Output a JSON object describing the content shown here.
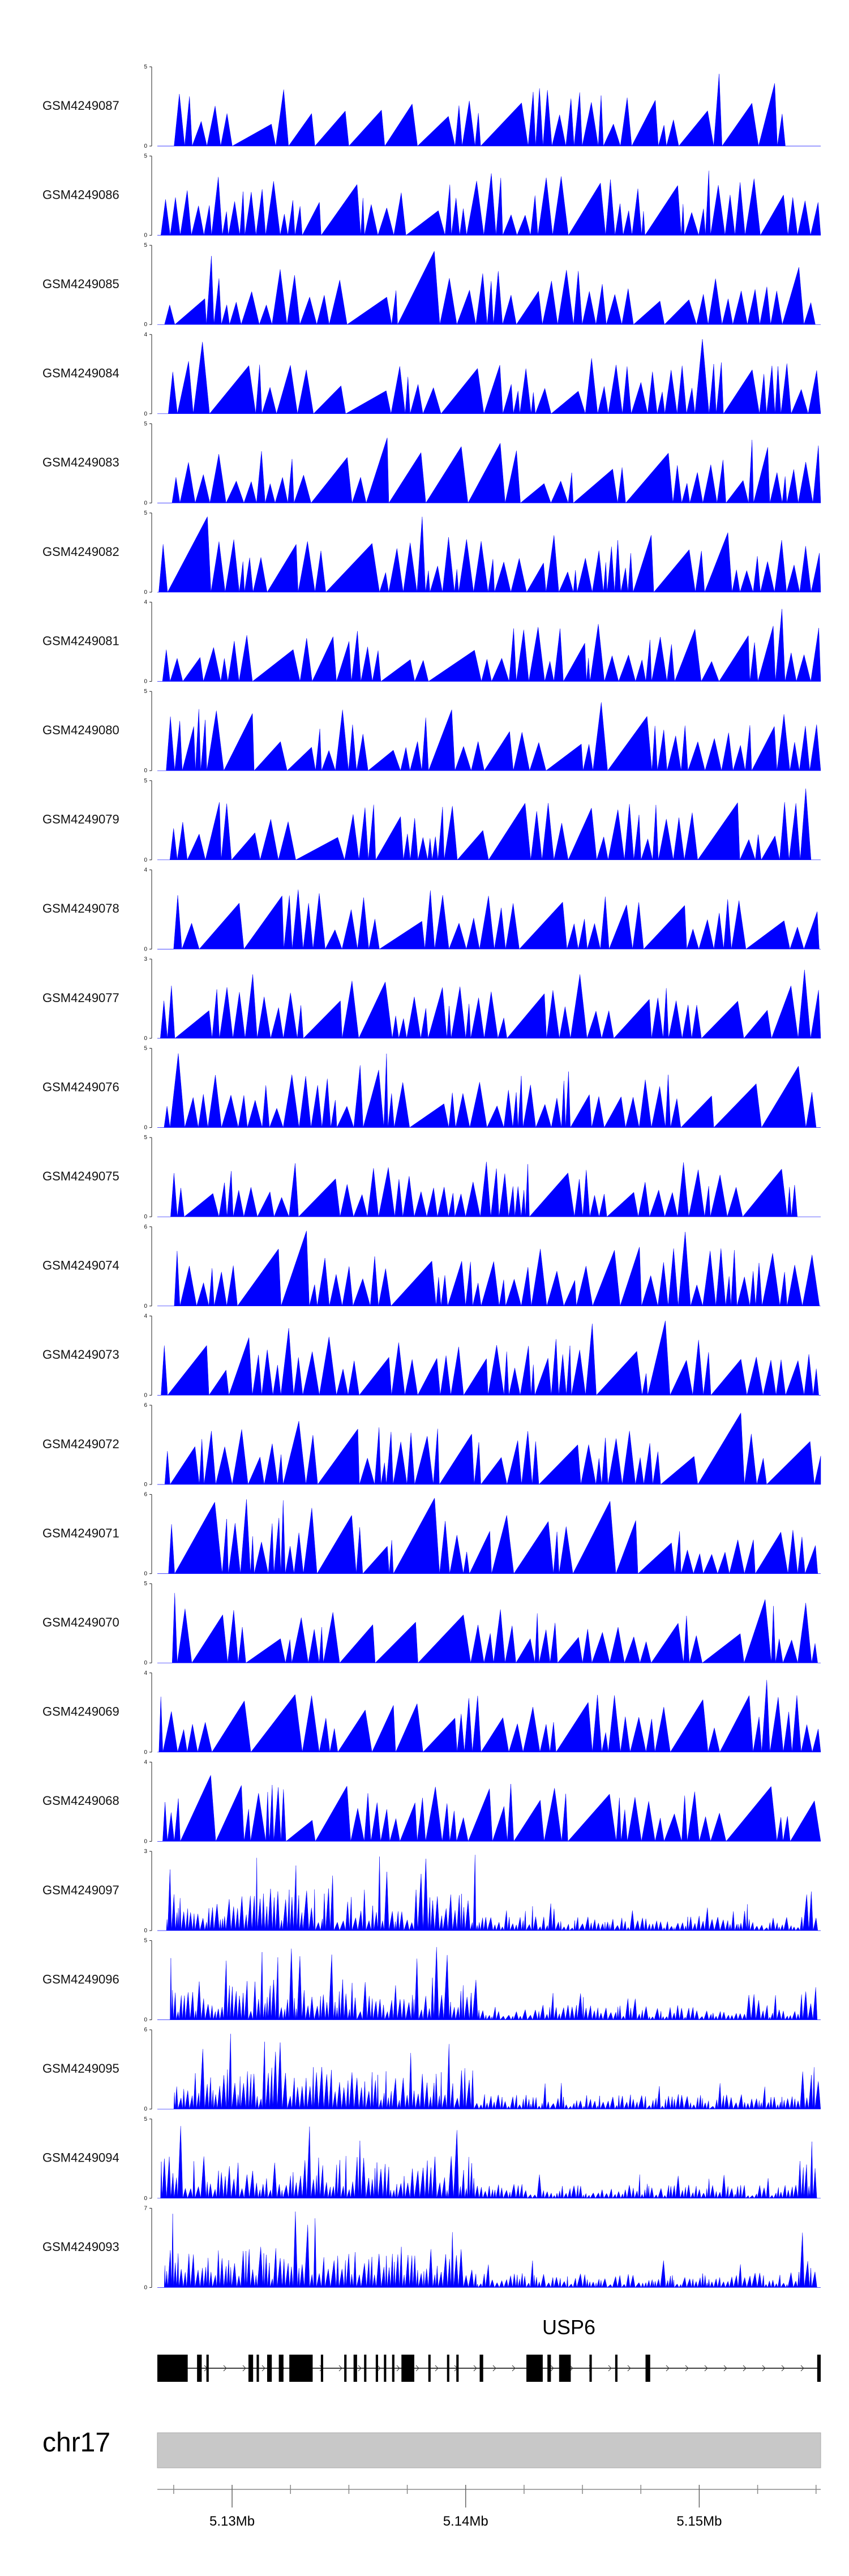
{
  "chart_data": {
    "type": "area",
    "fill_color": "#0000FF",
    "x_range": [
      5126800,
      5155200
    ],
    "tracks": [
      {
        "name": "GSM4249087",
        "ymax": 5,
        "seed": 11
      },
      {
        "name": "GSM4249086",
        "ymax": 5,
        "seed": 12
      },
      {
        "name": "GSM4249085",
        "ymax": 5,
        "seed": 13
      },
      {
        "name": "GSM4249084",
        "ymax": 4,
        "seed": 14
      },
      {
        "name": "GSM4249083",
        "ymax": 5,
        "seed": 15
      },
      {
        "name": "GSM4249082",
        "ymax": 5,
        "seed": 16
      },
      {
        "name": "GSM4249081",
        "ymax": 4,
        "seed": 17
      },
      {
        "name": "GSM4249080",
        "ymax": 5,
        "seed": 18
      },
      {
        "name": "GSM4249079",
        "ymax": 5,
        "seed": 19
      },
      {
        "name": "GSM4249078",
        "ymax": 4,
        "seed": 20
      },
      {
        "name": "GSM4249077",
        "ymax": 3,
        "seed": 21
      },
      {
        "name": "GSM4249076",
        "ymax": 5,
        "seed": 22
      },
      {
        "name": "GSM4249075",
        "ymax": 5,
        "seed": 23
      },
      {
        "name": "GSM4249074",
        "ymax": 6,
        "seed": 24
      },
      {
        "name": "GSM4249073",
        "ymax": 4,
        "seed": 25
      },
      {
        "name": "GSM4249072",
        "ymax": 6,
        "seed": 26
      },
      {
        "name": "GSM4249071",
        "ymax": 6,
        "seed": 27
      },
      {
        "name": "GSM4249070",
        "ymax": 5,
        "seed": 28
      },
      {
        "name": "GSM4249069",
        "ymax": 4,
        "seed": 29
      },
      {
        "name": "GSM4249068",
        "ymax": 4,
        "seed": 30
      },
      {
        "name": "GSM4249097",
        "ymax": 3,
        "seed": 31
      },
      {
        "name": "GSM4249096",
        "ymax": 5,
        "seed": 32
      },
      {
        "name": "GSM4249095",
        "ymax": 6,
        "seed": 33
      },
      {
        "name": "GSM4249094",
        "ymax": 5,
        "seed": 34
      },
      {
        "name": "GSM4249093",
        "ymax": 7,
        "seed": 35
      }
    ],
    "gene": {
      "name": "USP6",
      "start": 5126800,
      "end": 5155200,
      "exons": [
        [
          5126800,
          5128100
        ],
        [
          5128500,
          5128700
        ],
        [
          5128900,
          5129000
        ],
        [
          5130700,
          5130900
        ],
        [
          5131050,
          5131150
        ],
        [
          5131500,
          5131700
        ],
        [
          5132000,
          5132200
        ],
        [
          5132450,
          5133450
        ],
        [
          5133800,
          5133900
        ],
        [
          5134800,
          5134900
        ],
        [
          5135200,
          5135350
        ],
        [
          5135650,
          5135750
        ],
        [
          5136150,
          5136250
        ],
        [
          5136500,
          5136600
        ],
        [
          5136850,
          5136950
        ],
        [
          5137250,
          5137800
        ],
        [
          5138400,
          5138500
        ],
        [
          5139200,
          5139300
        ],
        [
          5139600,
          5139700
        ],
        [
          5140600,
          5140750
        ],
        [
          5142600,
          5143300
        ],
        [
          5143500,
          5143650
        ],
        [
          5144000,
          5144500
        ],
        [
          5145300,
          5145400
        ],
        [
          5146400,
          5146500
        ],
        [
          5147700,
          5147900
        ],
        [
          5155050,
          5155200
        ]
      ]
    },
    "chromosome": "chr17",
    "axis_ticks": [
      {
        "pos": 5130000,
        "label": "5.13Mb"
      },
      {
        "pos": 5140000,
        "label": "5.14Mb"
      },
      {
        "pos": 5150000,
        "label": "5.15Mb"
      }
    ],
    "minor_ticks": [
      5127500,
      5132500,
      5135000,
      5137500,
      5142500,
      5145000,
      5147500,
      5152500,
      5155000
    ]
  }
}
